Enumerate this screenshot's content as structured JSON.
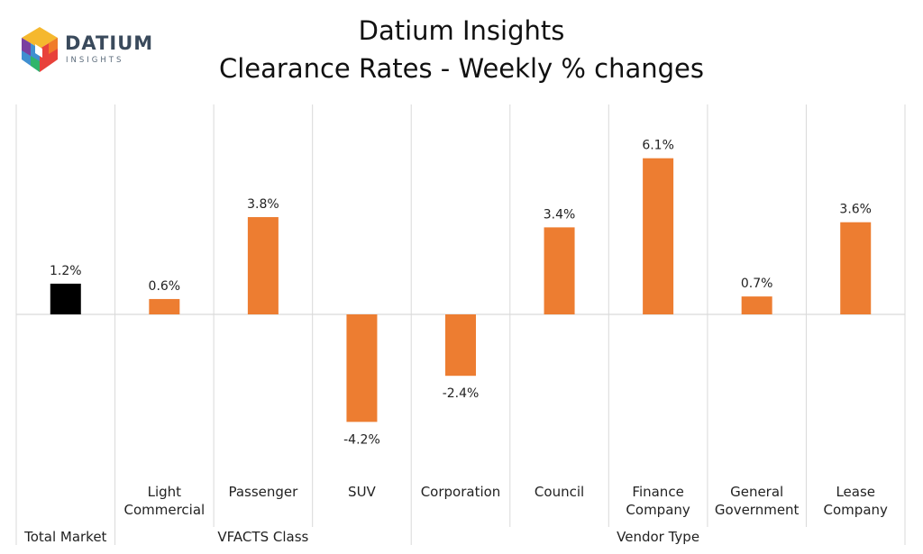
{
  "logo": {
    "name": "DATIUM",
    "sub": "INSIGHTS"
  },
  "chart_data": {
    "type": "bar",
    "title_lines": [
      "Datium Insights",
      "Clearance Rates - Weekly % changes"
    ],
    "categories": [
      [
        "Total Market"
      ],
      [
        "Light",
        "Commercial"
      ],
      [
        "Passenger"
      ],
      [
        "SUV"
      ],
      [
        "Corporation"
      ],
      [
        "Council"
      ],
      [
        "Finance",
        "Company"
      ],
      [
        "General",
        "Government"
      ],
      [
        "Lease",
        "Company"
      ]
    ],
    "values": [
      1.2,
      0.6,
      3.8,
      -4.2,
      -2.4,
      3.4,
      6.1,
      0.7,
      3.6
    ],
    "value_labels": [
      "1.2%",
      "0.6%",
      "3.8%",
      "-4.2%",
      "-2.4%",
      "3.4%",
      "6.1%",
      "0.7%",
      "3.6%"
    ],
    "bar_colors": [
      "#000000",
      "#ED7D31",
      "#ED7D31",
      "#ED7D31",
      "#ED7D31",
      "#ED7D31",
      "#ED7D31",
      "#ED7D31",
      "#ED7D31"
    ],
    "groups": [
      {
        "label": "",
        "start": 0,
        "end": 0
      },
      {
        "label": "VFACTS Class",
        "start": 1,
        "end": 3
      },
      {
        "label": "Vendor Type",
        "start": 4,
        "end": 8
      }
    ],
    "group_labels_bottom": [
      "Total Market",
      "VFACTS Class",
      "Vendor Type"
    ],
    "ylim": [
      -7,
      8.2
    ],
    "grid": false,
    "legend": "none",
    "xlabel": "",
    "ylabel": ""
  }
}
